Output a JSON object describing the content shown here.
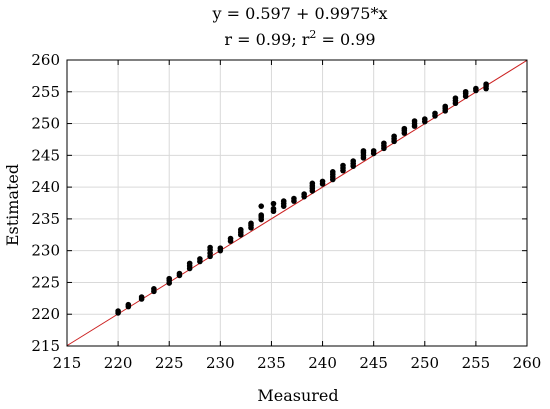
{
  "chart_data": {
    "type": "scatter",
    "title_line1": "y = 0.597 + 0.9975*x",
    "title_line2_prefix": "r = 0.99; r",
    "title_line2_sup": "2",
    "title_line2_suffix": " = 0.99",
    "xlabel": "Measured",
    "ylabel": "Estimated",
    "xlim": [
      215,
      260
    ],
    "ylim": [
      215,
      260
    ],
    "xticks": [
      "215",
      "220",
      "225",
      "230",
      "235",
      "240",
      "245",
      "250",
      "255",
      "260"
    ],
    "yticks": [
      "215",
      "220",
      "225",
      "230",
      "235",
      "240",
      "245",
      "250",
      "255",
      "260"
    ],
    "grid": true,
    "point_color": "#000000",
    "fit_line": {
      "intercept": 0.597,
      "slope": 0.9975,
      "color": "#cc2222"
    },
    "points": [
      [
        220,
        220.2
      ],
      [
        220,
        220.5
      ],
      [
        221,
        221.2
      ],
      [
        221,
        221.5
      ],
      [
        222.3,
        222.4
      ],
      [
        222.3,
        222.7
      ],
      [
        223.5,
        223.6
      ],
      [
        223.5,
        224.0
      ],
      [
        225,
        224.9
      ],
      [
        225,
        225.3
      ],
      [
        225,
        225.6
      ],
      [
        226,
        226.1
      ],
      [
        226,
        226.4
      ],
      [
        227,
        227.2
      ],
      [
        227,
        227.6
      ],
      [
        227,
        228.0
      ],
      [
        228,
        228.3
      ],
      [
        228,
        228.7
      ],
      [
        229,
        229.1
      ],
      [
        229,
        229.6
      ],
      [
        229,
        230.1
      ],
      [
        229,
        230.5
      ],
      [
        230,
        230.0
      ],
      [
        230,
        230.4
      ],
      [
        231,
        231.5
      ],
      [
        231,
        231.9
      ],
      [
        232,
        232.5
      ],
      [
        232,
        232.9
      ],
      [
        232,
        233.3
      ],
      [
        233,
        233.6
      ],
      [
        233,
        234.0
      ],
      [
        233,
        234.3
      ],
      [
        234,
        234.9
      ],
      [
        234,
        235.3
      ],
      [
        234,
        235.6
      ],
      [
        234,
        237.0
      ],
      [
        235.2,
        236.2
      ],
      [
        235.2,
        236.6
      ],
      [
        235.2,
        237.4
      ],
      [
        236.2,
        237.0
      ],
      [
        236.2,
        237.4
      ],
      [
        236.2,
        237.8
      ],
      [
        237.2,
        237.8
      ],
      [
        237.2,
        238.2
      ],
      [
        238.2,
        238.5
      ],
      [
        238.2,
        238.9
      ],
      [
        239,
        239.4
      ],
      [
        239,
        239.8
      ],
      [
        239,
        240.2
      ],
      [
        239,
        240.6
      ],
      [
        240,
        240.5
      ],
      [
        240,
        240.9
      ],
      [
        241,
        241.2
      ],
      [
        241,
        241.6
      ],
      [
        241,
        242.0
      ],
      [
        241,
        242.4
      ],
      [
        242,
        242.6
      ],
      [
        242,
        243.0
      ],
      [
        242,
        243.4
      ],
      [
        243,
        243.3
      ],
      [
        243,
        243.7
      ],
      [
        243,
        244.1
      ],
      [
        244,
        244.6
      ],
      [
        244,
        245.0
      ],
      [
        244,
        245.4
      ],
      [
        244,
        245.7
      ],
      [
        245,
        245.3
      ],
      [
        245,
        245.7
      ],
      [
        246,
        246.1
      ],
      [
        246,
        246.5
      ],
      [
        246,
        246.9
      ],
      [
        247,
        247.2
      ],
      [
        247,
        247.6
      ],
      [
        247,
        248.0
      ],
      [
        248,
        248.5
      ],
      [
        248,
        248.9
      ],
      [
        248,
        249.2
      ],
      [
        249,
        249.6
      ],
      [
        249,
        250.0
      ],
      [
        249,
        250.4
      ],
      [
        250,
        250.3
      ],
      [
        250,
        250.7
      ],
      [
        251,
        251.2
      ],
      [
        251,
        251.6
      ],
      [
        252,
        252.0
      ],
      [
        252,
        252.4
      ],
      [
        252,
        252.7
      ],
      [
        253,
        253.2
      ],
      [
        253,
        253.6
      ],
      [
        253,
        254.0
      ],
      [
        254,
        254.3
      ],
      [
        254,
        254.7
      ],
      [
        254,
        255.0
      ],
      [
        255,
        255.2
      ],
      [
        255,
        255.5
      ],
      [
        256,
        255.5
      ],
      [
        256,
        255.9
      ],
      [
        256,
        256.2
      ]
    ]
  }
}
